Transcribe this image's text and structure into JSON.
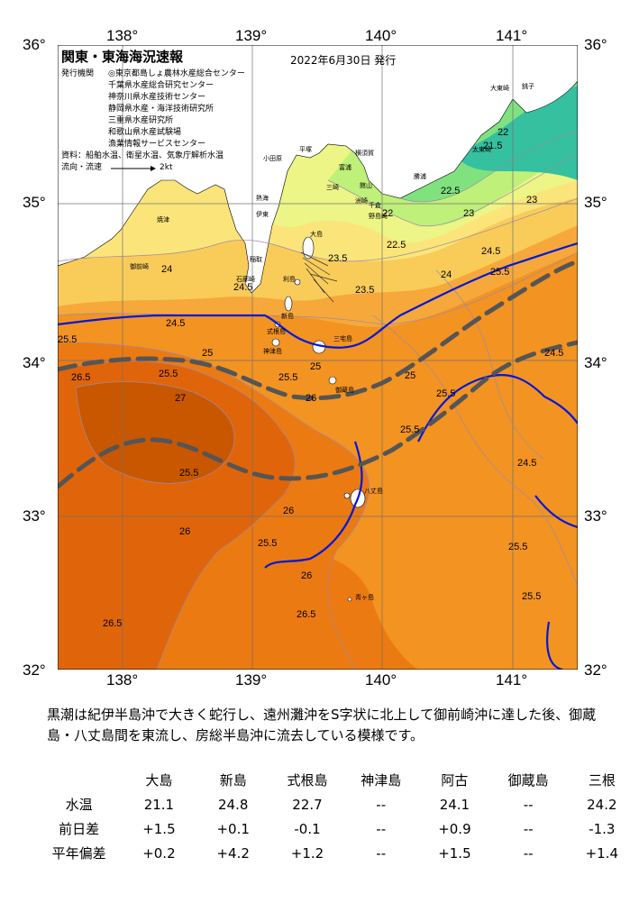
{
  "header": {
    "title": "関東・東海海況速報",
    "published": "2022年6月30日 発行"
  },
  "info": {
    "issuer_label": "発行機関",
    "issuers": [
      "◎東京都島しょ農林水産総合センター",
      "千葉県水産総合研究センター",
      "神奈川県水産技術センター",
      "静岡県水産・海洋技術研究所",
      "三重県水産研究所",
      "和歌山県水産試験場",
      "漁業情報サービスセンター"
    ],
    "sources": "資料：船舶水温、衛星水温、気象庁解析水温",
    "current_label": "流向・流速",
    "current_scale": "2kt"
  },
  "axes": {
    "lon_labels": [
      "138°",
      "139°",
      "140°",
      "141°"
    ],
    "lat_labels": [
      "36°",
      "35°",
      "34°",
      "33°",
      "32°"
    ]
  },
  "place_names": [
    "大島",
    "新島",
    "式根島",
    "神津島",
    "三宅島",
    "御蔵島",
    "八丈島",
    "利島",
    "青ヶ島",
    "銚子",
    "大東崎",
    "太東崎",
    "勝浦",
    "野島崎",
    "洲崎",
    "館山",
    "三崎",
    "横須賀",
    "平塚",
    "小田原",
    "熱海",
    "伊東",
    "稲取",
    "焼津",
    "御前崎",
    "石廊崎",
    "千倉",
    "富浦"
  ],
  "contours": {
    "labels": [
      "21.5",
      "22",
      "22.5",
      "23",
      "23.5",
      "24",
      "24.5",
      "25",
      "25.5",
      "26",
      "26.5",
      "27"
    ],
    "colors": {
      "c21": "#35c0a0",
      "c22": "#7fe27f",
      "c23": "#bff07a",
      "c235": "#ecf585",
      "c24": "#fbe57a",
      "c245": "#f9cc5a",
      "c25": "#f7a83a",
      "c255": "#f39322",
      "c26": "#ec7a12",
      "c265": "#e0650a",
      "c27": "#c95700",
      "land": "#ffffff",
      "kuroshio_axis": "#555555",
      "kuroshio_edge": "#0018d8"
    }
  },
  "description": "黒潮は紀伊半島沖で大きく蛇行し、遠州灘沖をS字状に北上して御前崎沖に達した後、御蔵島・八丈島間を東流し、房総半島沖に流去している模様です。",
  "table": {
    "columns": [
      "大島",
      "新島",
      "式根島",
      "神津島",
      "阿古",
      "御蔵島",
      "三根"
    ],
    "rows": [
      {
        "label": "水温",
        "values": [
          "21.1",
          "24.8",
          "22.7",
          "--",
          "24.1",
          "--",
          "24.2"
        ]
      },
      {
        "label": "前日差",
        "values": [
          "+1.5",
          "+0.1",
          "-0.1",
          "--",
          "+0.9",
          "--",
          "-1.3"
        ]
      },
      {
        "label": "平年偏差",
        "values": [
          "+0.2",
          "+4.2",
          "+1.2",
          "--",
          "+1.5",
          "--",
          "+1.4"
        ]
      }
    ]
  }
}
